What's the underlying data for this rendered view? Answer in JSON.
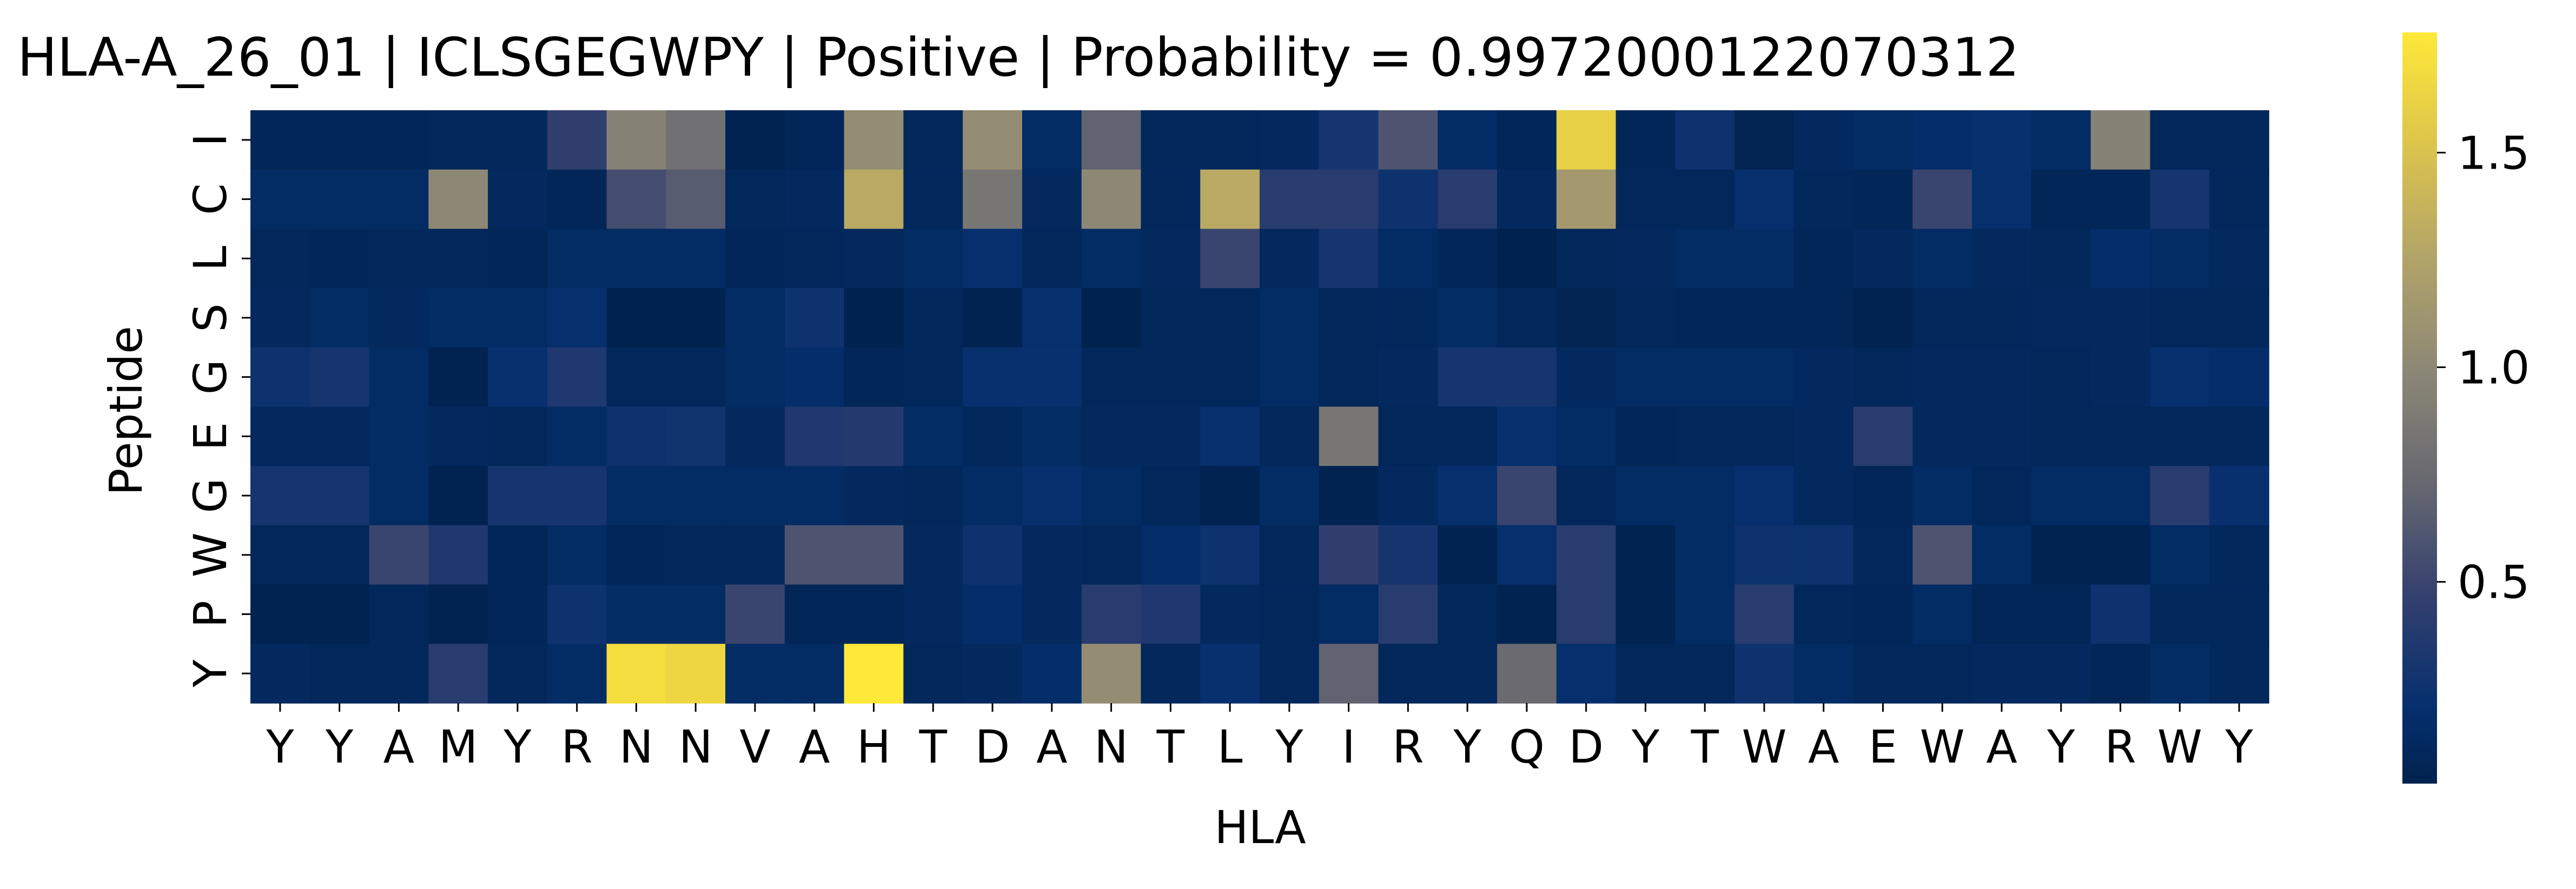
{
  "chart_data": {
    "type": "heatmap",
    "title": "HLA-A_26_01 | ICLSGEGWPY | Positive | Probability = 0.9972000122070312",
    "xlabel": "HLA",
    "ylabel": "Peptide",
    "x_ticklabels": [
      "Y",
      "Y",
      "A",
      "M",
      "Y",
      "R",
      "N",
      "N",
      "V",
      "A",
      "H",
      "T",
      "D",
      "A",
      "N",
      "T",
      "L",
      "Y",
      "I",
      "R",
      "Y",
      "Q",
      "D",
      "Y",
      "T",
      "W",
      "A",
      "E",
      "W",
      "A",
      "Y",
      "R",
      "W",
      "Y"
    ],
    "y_ticklabels": [
      "I",
      "C",
      "L",
      "S",
      "G",
      "E",
      "G",
      "W",
      "P",
      "Y"
    ],
    "colormap": "cividis",
    "colorbar_ticks": [
      0.5,
      1.0,
      1.5
    ],
    "colorbar_ticklabels": [
      "0.5",
      "1.0",
      "1.5"
    ],
    "vmin": 0.03,
    "vmax": 1.78,
    "values": [
      [
        0.08,
        0.08,
        0.08,
        0.1,
        0.1,
        0.45,
        0.95,
        0.8,
        0.05,
        0.08,
        1.05,
        0.1,
        1.05,
        0.15,
        0.7,
        0.1,
        0.1,
        0.12,
        0.3,
        0.6,
        0.15,
        0.08,
        1.6,
        0.08,
        0.25,
        0.06,
        0.12,
        0.15,
        0.18,
        0.22,
        0.15,
        0.95,
        0.1,
        0.1
      ],
      [
        0.15,
        0.15,
        0.15,
        1.0,
        0.12,
        0.08,
        0.55,
        0.65,
        0.1,
        0.12,
        1.3,
        0.1,
        0.85,
        0.12,
        1.0,
        0.1,
        1.3,
        0.4,
        0.4,
        0.25,
        0.4,
        0.12,
        1.15,
        0.1,
        0.1,
        0.2,
        0.1,
        0.08,
        0.5,
        0.2,
        0.08,
        0.08,
        0.3,
        0.1
      ],
      [
        0.1,
        0.08,
        0.1,
        0.1,
        0.08,
        0.15,
        0.15,
        0.15,
        0.08,
        0.1,
        0.12,
        0.15,
        0.2,
        0.1,
        0.15,
        0.12,
        0.5,
        0.12,
        0.3,
        0.15,
        0.08,
        0.03,
        0.1,
        0.12,
        0.15,
        0.15,
        0.08,
        0.12,
        0.15,
        0.12,
        0.1,
        0.18,
        0.15,
        0.12
      ],
      [
        0.12,
        0.15,
        0.12,
        0.15,
        0.15,
        0.2,
        0.03,
        0.03,
        0.15,
        0.25,
        0.03,
        0.1,
        0.05,
        0.2,
        0.03,
        0.1,
        0.1,
        0.15,
        0.1,
        0.1,
        0.15,
        0.1,
        0.06,
        0.1,
        0.08,
        0.08,
        0.08,
        0.05,
        0.1,
        0.1,
        0.12,
        0.12,
        0.1,
        0.1
      ],
      [
        0.25,
        0.3,
        0.15,
        0.05,
        0.22,
        0.35,
        0.1,
        0.1,
        0.15,
        0.18,
        0.08,
        0.1,
        0.22,
        0.22,
        0.1,
        0.1,
        0.1,
        0.15,
        0.1,
        0.12,
        0.3,
        0.3,
        0.12,
        0.15,
        0.15,
        0.15,
        0.12,
        0.1,
        0.12,
        0.12,
        0.1,
        0.12,
        0.2,
        0.18
      ],
      [
        0.12,
        0.12,
        0.15,
        0.12,
        0.1,
        0.15,
        0.25,
        0.28,
        0.12,
        0.35,
        0.38,
        0.15,
        0.1,
        0.15,
        0.12,
        0.12,
        0.22,
        0.1,
        0.85,
        0.1,
        0.1,
        0.2,
        0.15,
        0.08,
        0.1,
        0.1,
        0.12,
        0.4,
        0.12,
        0.12,
        0.1,
        0.1,
        0.1,
        0.1
      ],
      [
        0.3,
        0.3,
        0.15,
        0.05,
        0.3,
        0.3,
        0.15,
        0.15,
        0.15,
        0.15,
        0.12,
        0.1,
        0.15,
        0.2,
        0.15,
        0.1,
        0.05,
        0.15,
        0.05,
        0.12,
        0.2,
        0.5,
        0.1,
        0.15,
        0.15,
        0.2,
        0.12,
        0.08,
        0.15,
        0.1,
        0.15,
        0.15,
        0.4,
        0.22
      ],
      [
        0.1,
        0.1,
        0.5,
        0.35,
        0.08,
        0.15,
        0.08,
        0.1,
        0.1,
        0.6,
        0.6,
        0.12,
        0.25,
        0.12,
        0.1,
        0.18,
        0.25,
        0.1,
        0.45,
        0.3,
        0.05,
        0.2,
        0.4,
        0.05,
        0.15,
        0.25,
        0.25,
        0.1,
        0.6,
        0.15,
        0.05,
        0.05,
        0.15,
        0.1
      ],
      [
        0.05,
        0.05,
        0.1,
        0.05,
        0.08,
        0.25,
        0.15,
        0.15,
        0.5,
        0.08,
        0.08,
        0.12,
        0.18,
        0.12,
        0.4,
        0.35,
        0.12,
        0.1,
        0.15,
        0.4,
        0.1,
        0.05,
        0.4,
        0.05,
        0.15,
        0.4,
        0.1,
        0.08,
        0.15,
        0.08,
        0.08,
        0.25,
        0.1,
        0.1
      ],
      [
        0.12,
        0.1,
        0.1,
        0.4,
        0.1,
        0.15,
        1.7,
        1.65,
        0.15,
        0.15,
        1.78,
        0.1,
        0.12,
        0.18,
        1.05,
        0.1,
        0.22,
        0.1,
        0.7,
        0.1,
        0.1,
        0.75,
        0.2,
        0.1,
        0.1,
        0.25,
        0.15,
        0.1,
        0.1,
        0.12,
        0.12,
        0.08,
        0.15,
        0.1
      ]
    ]
  }
}
